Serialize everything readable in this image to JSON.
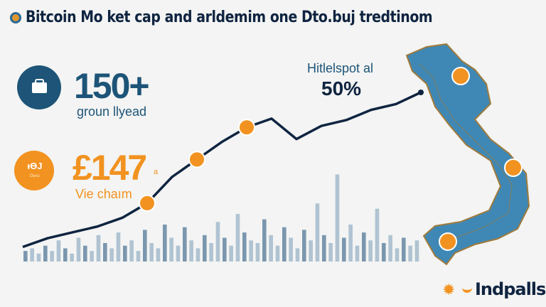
{
  "title": "Bitcoin Mo ket cap and arldemim one Dto.buj tredtinom",
  "stats": [
    {
      "value": "150+",
      "label": "groun llyead",
      "color": "#1d5478",
      "icon": "briefcase-icon",
      "icon_text": ""
    },
    {
      "value": "£147",
      "suffix": "a",
      "label": "Vie chaım",
      "color": "#f08c24",
      "icon": "coin-icon",
      "icon_text": "ᵻӨЈ",
      "icon_subtext": "Ꭰᴚᴧʋ"
    }
  ],
  "callout": {
    "label": "Hitlelspot al",
    "value": "50%"
  },
  "logo": {
    "text": "Indpalls"
  },
  "colors": {
    "navy": "#0f2440",
    "orange": "#f29220",
    "map_blue": "#3f88b5",
    "map_border": "#a07a3c",
    "bars": "#9fb6c9"
  },
  "chart_data": {
    "type": "line",
    "title": "",
    "xlabel": "",
    "ylabel": "",
    "line": [
      10,
      16,
      20,
      24,
      30,
      40,
      58,
      70,
      82,
      92,
      98,
      84,
      93,
      97,
      104,
      108,
      116
    ],
    "bars": [
      4,
      5,
      3,
      6,
      4,
      8,
      5,
      3,
      9,
      6,
      4,
      10,
      7,
      5,
      11,
      6,
      8,
      4,
      12,
      7,
      5,
      14,
      9,
      6,
      13,
      8,
      5,
      10,
      7,
      15,
      9,
      6,
      18,
      11,
      8,
      7,
      16,
      10,
      6,
      13,
      9,
      5,
      12,
      8,
      22,
      10,
      7,
      33,
      9,
      14,
      6,
      11,
      8,
      20,
      7,
      10,
      5,
      9,
      6,
      8
    ],
    "bar_max": 35,
    "markers": [
      {
        "index": 5,
        "icon": "coin-icon"
      },
      {
        "index": 7,
        "icon": "coin-icon"
      },
      {
        "index": 9,
        "icon": "coin-icon"
      }
    ]
  }
}
